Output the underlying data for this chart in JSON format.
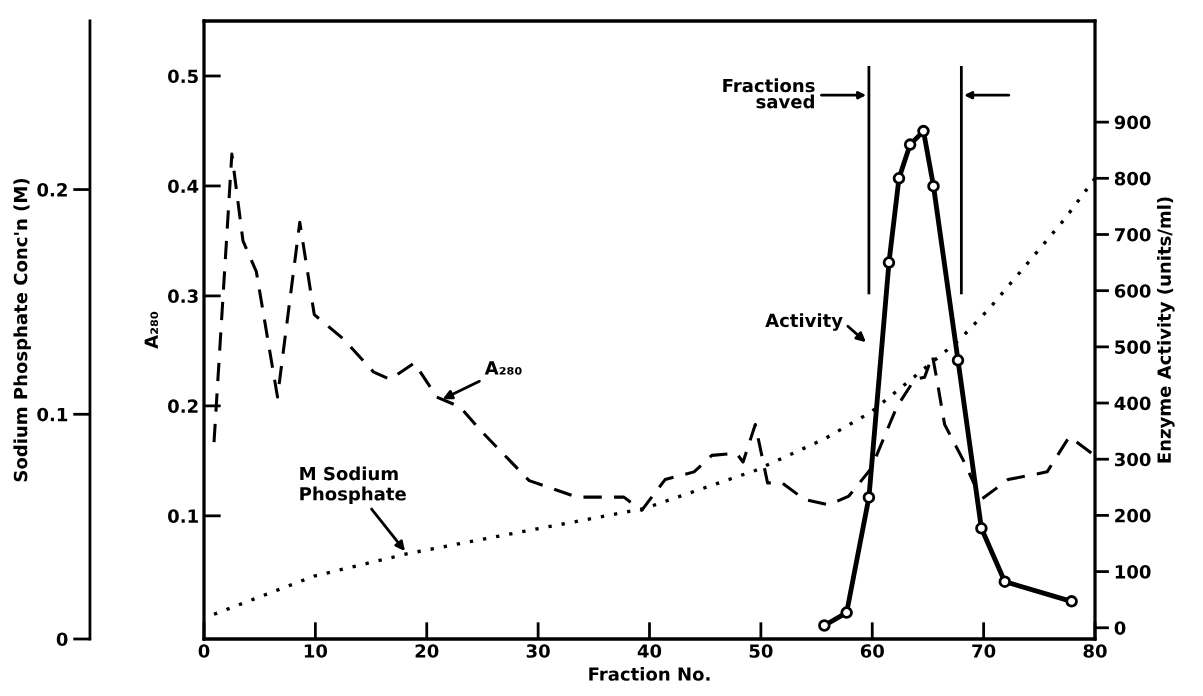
{
  "chart_data": {
    "type": "line",
    "xlabel": "Fraction No.",
    "ylabel": "A₂₈₀",
    "y2label": "Enzyme Activity (units/ml)",
    "y3label": "Sodium Phosphate Conc'n (M)",
    "xlim": [
      0,
      80
    ],
    "xticks": [
      0,
      10,
      20,
      30,
      40,
      50,
      60,
      70,
      80
    ],
    "ylim": [
      -0.012,
      0.55
    ],
    "yticks": [
      0.1,
      0.2,
      0.3,
      0.4,
      0.5
    ],
    "y2lim": [
      -20,
      1080
    ],
    "y2ticks": [
      0,
      100,
      200,
      300,
      400,
      500,
      600,
      700,
      800,
      900
    ],
    "y3lim": [
      0,
      0.275
    ],
    "y3ticks": [
      0,
      0.1,
      0.2
    ],
    "grid": false,
    "legend": false,
    "series": [
      {
        "axis": "y",
        "color": "#000000",
        "line_style": "dashed",
        "marker": "none",
        "x": [
          0.9,
          2.5,
          3.5,
          4.7,
          6.6,
          8.6,
          9.9,
          12.5,
          15.2,
          16.7,
          18.9,
          20.9,
          23,
          24.8,
          29.2,
          33.5,
          37.7,
          39.3,
          41.4,
          44,
          45.6,
          47.8,
          48.4,
          49.5,
          50.6,
          51.9,
          53.9,
          56.1,
          57.9,
          59.9,
          62.2,
          63.8,
          64.7,
          65.4,
          65.8,
          66.5,
          68.2,
          69.8,
          72.2,
          75.7,
          77.7,
          79.7
        ],
        "values": [
          0.167,
          0.429,
          0.35,
          0.322,
          0.208,
          0.367,
          0.283,
          0.261,
          0.231,
          0.224,
          0.239,
          0.208,
          0.199,
          0.178,
          0.132,
          0.117,
          0.117,
          0.105,
          0.133,
          0.14,
          0.155,
          0.157,
          0.149,
          0.183,
          0.13,
          0.13,
          0.115,
          0.11,
          0.118,
          0.143,
          0.199,
          0.224,
          0.226,
          0.246,
          0.224,
          0.183,
          0.15,
          0.115,
          0.133,
          0.14,
          0.172,
          0.157
        ]
      },
      {
        "axis": "y3",
        "color": "#000000",
        "line_style": "dotted",
        "marker": "none",
        "x": [
          0.9,
          9.9,
          18.3,
          29.9,
          39.5,
          49.5,
          55.7,
          59.9,
          67.8,
          70.5,
          73.4,
          77.3,
          80
        ],
        "values": [
          0.011,
          0.028,
          0.038,
          0.049,
          0.058,
          0.075,
          0.089,
          0.101,
          0.133,
          0.147,
          0.164,
          0.187,
          0.205
        ]
      },
      {
        "axis": "y2",
        "color": "#000000",
        "line_style": "solid",
        "marker": "circle",
        "x": [
          55.7,
          57.7,
          59.7,
          61.5,
          62.4,
          63.4,
          64.6,
          65.5,
          67.7,
          69.8,
          71.9,
          77.9
        ],
        "values": [
          4,
          27,
          232,
          650,
          800,
          860,
          884,
          786,
          476,
          177,
          82,
          47
        ]
      }
    ],
    "ref_lines": [
      {
        "axis": "x",
        "value": 59.7,
        "label": "Fractions saved",
        "color": "#000000"
      },
      {
        "axis": "x",
        "value": 68.0,
        "color": "#000000"
      }
    ],
    "annotations": [
      {
        "text": "A₂₈₀",
        "x": 21.2,
        "y": 0.205
      },
      "Activity",
      {
        "text": "M Sodium\nPhosphate",
        "x": 18.2,
        "y": 0.066
      }
    ]
  }
}
